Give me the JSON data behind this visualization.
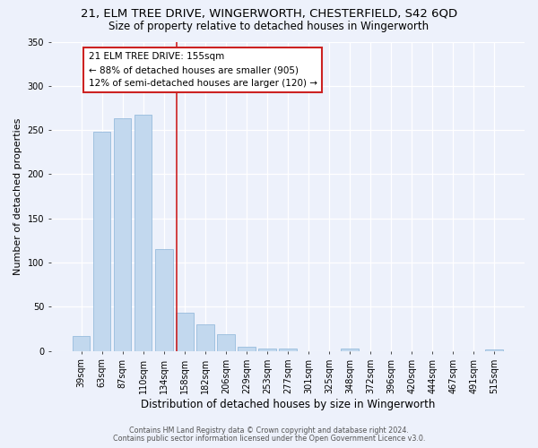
{
  "title": "21, ELM TREE DRIVE, WINGERWORTH, CHESTERFIELD, S42 6QD",
  "subtitle": "Size of property relative to detached houses in Wingerworth",
  "xlabel": "Distribution of detached houses by size in Wingerworth",
  "ylabel": "Number of detached properties",
  "categories": [
    "39sqm",
    "63sqm",
    "87sqm",
    "110sqm",
    "134sqm",
    "158sqm",
    "182sqm",
    "206sqm",
    "229sqm",
    "253sqm",
    "277sqm",
    "301sqm",
    "325sqm",
    "348sqm",
    "372sqm",
    "396sqm",
    "420sqm",
    "444sqm",
    "467sqm",
    "491sqm",
    "515sqm"
  ],
  "values": [
    17,
    248,
    263,
    267,
    115,
    43,
    30,
    19,
    5,
    3,
    3,
    0,
    0,
    3,
    0,
    0,
    0,
    0,
    0,
    0,
    2
  ],
  "bar_color": "#c2d8ee",
  "bar_edge_color": "#8ab4d8",
  "vline_color": "#cc2222",
  "vline_x": 4.6,
  "annotation_line1": "21 ELM TREE DRIVE: 155sqm",
  "annotation_line2": "← 88% of detached houses are smaller (905)",
  "annotation_line3": "12% of semi-detached houses are larger (120) →",
  "ylim_max": 350,
  "yticks": [
    0,
    50,
    100,
    150,
    200,
    250,
    300,
    350
  ],
  "footnote1": "Contains HM Land Registry data © Crown copyright and database right 2024.",
  "footnote2": "Contains public sector information licensed under the Open Government Licence v3.0.",
  "bg_color": "#edf1fb",
  "grid_color": "#ffffff",
  "title_fontsize": 9.5,
  "subtitle_fontsize": 8.5,
  "ylabel_fontsize": 8,
  "xlabel_fontsize": 8.5,
  "tick_fontsize": 7,
  "annot_fontsize": 7.5,
  "footnote_fontsize": 5.8
}
